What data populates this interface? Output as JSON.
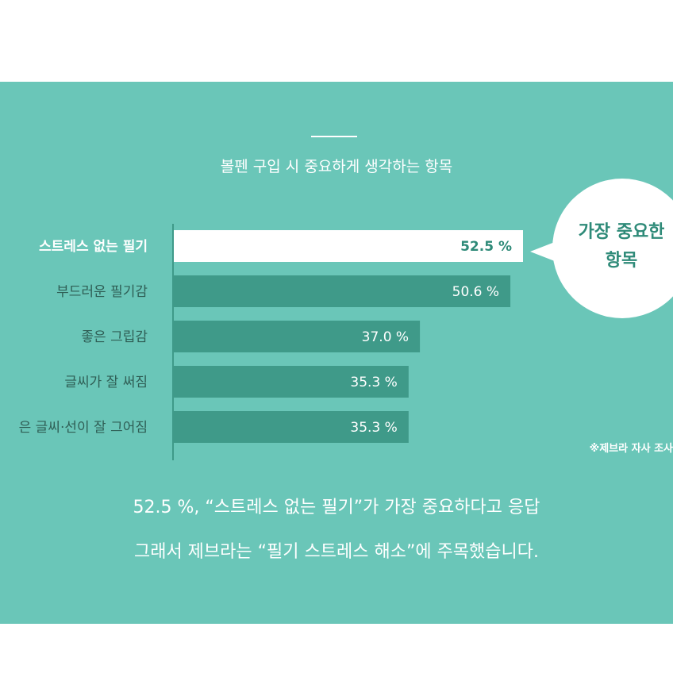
{
  "colors": {
    "panel_bg": "#6ac6b8",
    "bar_highlight": "#ffffff",
    "bar_default": "#3f9a89",
    "highlight_value": "#2e8a78",
    "highlight_label": "#ffffff",
    "default_label": "#2f5e55",
    "default_value": "#ffffff",
    "axis": "#3f9a89"
  },
  "header": {
    "title": "볼펜 구입 시 중요하게 생각하는 항목"
  },
  "chart_data": {
    "type": "bar",
    "orientation": "horizontal",
    "title": "볼펜 구입 시 중요하게 생각하는 항목",
    "categories": [
      "스트레스 없는 필기",
      "부드러운 필기감",
      "좋은 그립감",
      "글씨가 잘 써짐",
      "은 글씨·선이 잘 그어짐"
    ],
    "values": [
      52.5,
      50.6,
      37.0,
      35.3,
      35.3
    ],
    "value_labels": [
      "52.5 %",
      "50.6 %",
      "37.0 %",
      "35.3 %",
      "35.3 %"
    ],
    "highlight_index": 0,
    "unit": "%",
    "xlim": [
      0,
      52.5
    ],
    "grid": false,
    "legend": "none"
  },
  "callout": {
    "line1": "가장 중요한",
    "line2": "항목"
  },
  "source_note": "※제브라 자사 조사",
  "summary": {
    "line1": "52.5 %, “스트레스 없는 필기”가 가장 중요하다고 응답",
    "line2": "그래서 제브라는 “필기 스트레스 해소”에 주목했습니다."
  }
}
